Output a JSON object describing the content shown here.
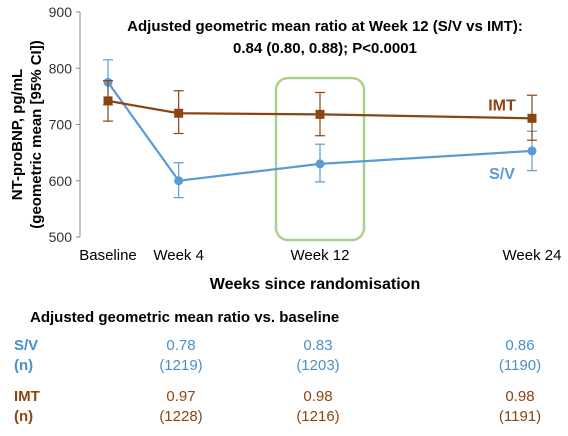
{
  "chart_data": {
    "type": "line",
    "title": "",
    "annotation_line1": "Adjusted geometric mean ratio at Week 12 (S/V vs IMT):",
    "annotation_line2": "0.84 (0.80, 0.88); P<0.0001",
    "ylabel_line1": "NT-proBNP, pg/mL",
    "ylabel_line2": "(geometric mean [95% CI])",
    "xlabel": "Weeks since randomisation",
    "ylim": [
      500,
      900
    ],
    "yticks": [
      500,
      600,
      700,
      800,
      900
    ],
    "categories": [
      "Baseline",
      "Week 4",
      "Week 12",
      "Week 24"
    ],
    "x_weeks": [
      0,
      4,
      12,
      24
    ],
    "highlight_category": "Week 12",
    "series": [
      {
        "name": "S/V",
        "color": "#5B9BD5",
        "values": [
          775,
          600,
          630,
          653
        ],
        "ci_low": [
          735,
          570,
          598,
          618
        ],
        "ci_high": [
          815,
          632,
          665,
          688
        ]
      },
      {
        "name": "IMT",
        "color": "#8B4513",
        "values": [
          742,
          720,
          718,
          711
        ],
        "ci_low": [
          706,
          684,
          680,
          672
        ],
        "ci_high": [
          778,
          760,
          757,
          752
        ]
      }
    ]
  },
  "table": {
    "title": "Adjusted geometric mean ratio vs. baseline",
    "rows": [
      {
        "label": "S/V",
        "values": [
          "0.78",
          "0.83",
          "0.86"
        ]
      },
      {
        "label": "(n)",
        "values": [
          "(1219)",
          "(1203)",
          "(1190)"
        ]
      },
      {
        "label": "IMT",
        "values": [
          "0.97",
          "0.98",
          "0.98"
        ]
      },
      {
        "label": "(n)",
        "values": [
          "(1228)",
          "(1216)",
          "(1191)"
        ]
      }
    ]
  }
}
